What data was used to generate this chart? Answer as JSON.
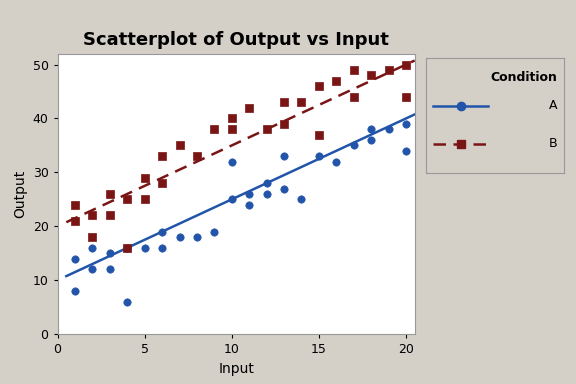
{
  "title": "Scatterplot of Output vs Input",
  "xlabel": "Input",
  "ylabel": "Output",
  "xlim": [
    0,
    20.5
  ],
  "ylim": [
    0,
    52
  ],
  "xticks": [
    0,
    5,
    10,
    15,
    20
  ],
  "yticks": [
    0,
    10,
    20,
    30,
    40,
    50
  ],
  "bg_color": "#d4d0c8",
  "plot_bg_color": "#ffffff",
  "scatter_A_x": [
    1,
    1,
    2,
    2,
    3,
    3,
    4,
    4,
    5,
    6,
    6,
    7,
    8,
    9,
    10,
    10,
    11,
    11,
    12,
    12,
    13,
    13,
    14,
    15,
    16,
    17,
    18,
    18,
    19,
    20,
    20
  ],
  "scatter_A_y": [
    14,
    8,
    16,
    12,
    15,
    12,
    16,
    6,
    16,
    16,
    19,
    18,
    18,
    19,
    32,
    25,
    26,
    24,
    28,
    26,
    33,
    27,
    25,
    33,
    32,
    35,
    36,
    38,
    38,
    39,
    34
  ],
  "scatter_B_x": [
    1,
    1,
    2,
    2,
    3,
    3,
    4,
    4,
    5,
    5,
    6,
    6,
    7,
    8,
    9,
    10,
    10,
    11,
    12,
    13,
    13,
    14,
    15,
    15,
    16,
    17,
    17,
    18,
    19,
    20,
    20
  ],
  "scatter_B_y": [
    21,
    24,
    22,
    18,
    26,
    22,
    25,
    16,
    29,
    25,
    33,
    28,
    35,
    33,
    38,
    40,
    38,
    42,
    38,
    43,
    39,
    43,
    46,
    37,
    47,
    44,
    49,
    48,
    49,
    50,
    44
  ],
  "line_A_slope": 1.5,
  "line_A_intercept": 10.0,
  "line_B_slope": 1.5,
  "line_B_intercept": 20.0,
  "color_A": "#2255aa",
  "color_B": "#7a1515",
  "marker_A": "o",
  "marker_B": "s",
  "legend_title": "Condition",
  "title_fontsize": 13,
  "label_fontsize": 10,
  "tick_fontsize": 9
}
